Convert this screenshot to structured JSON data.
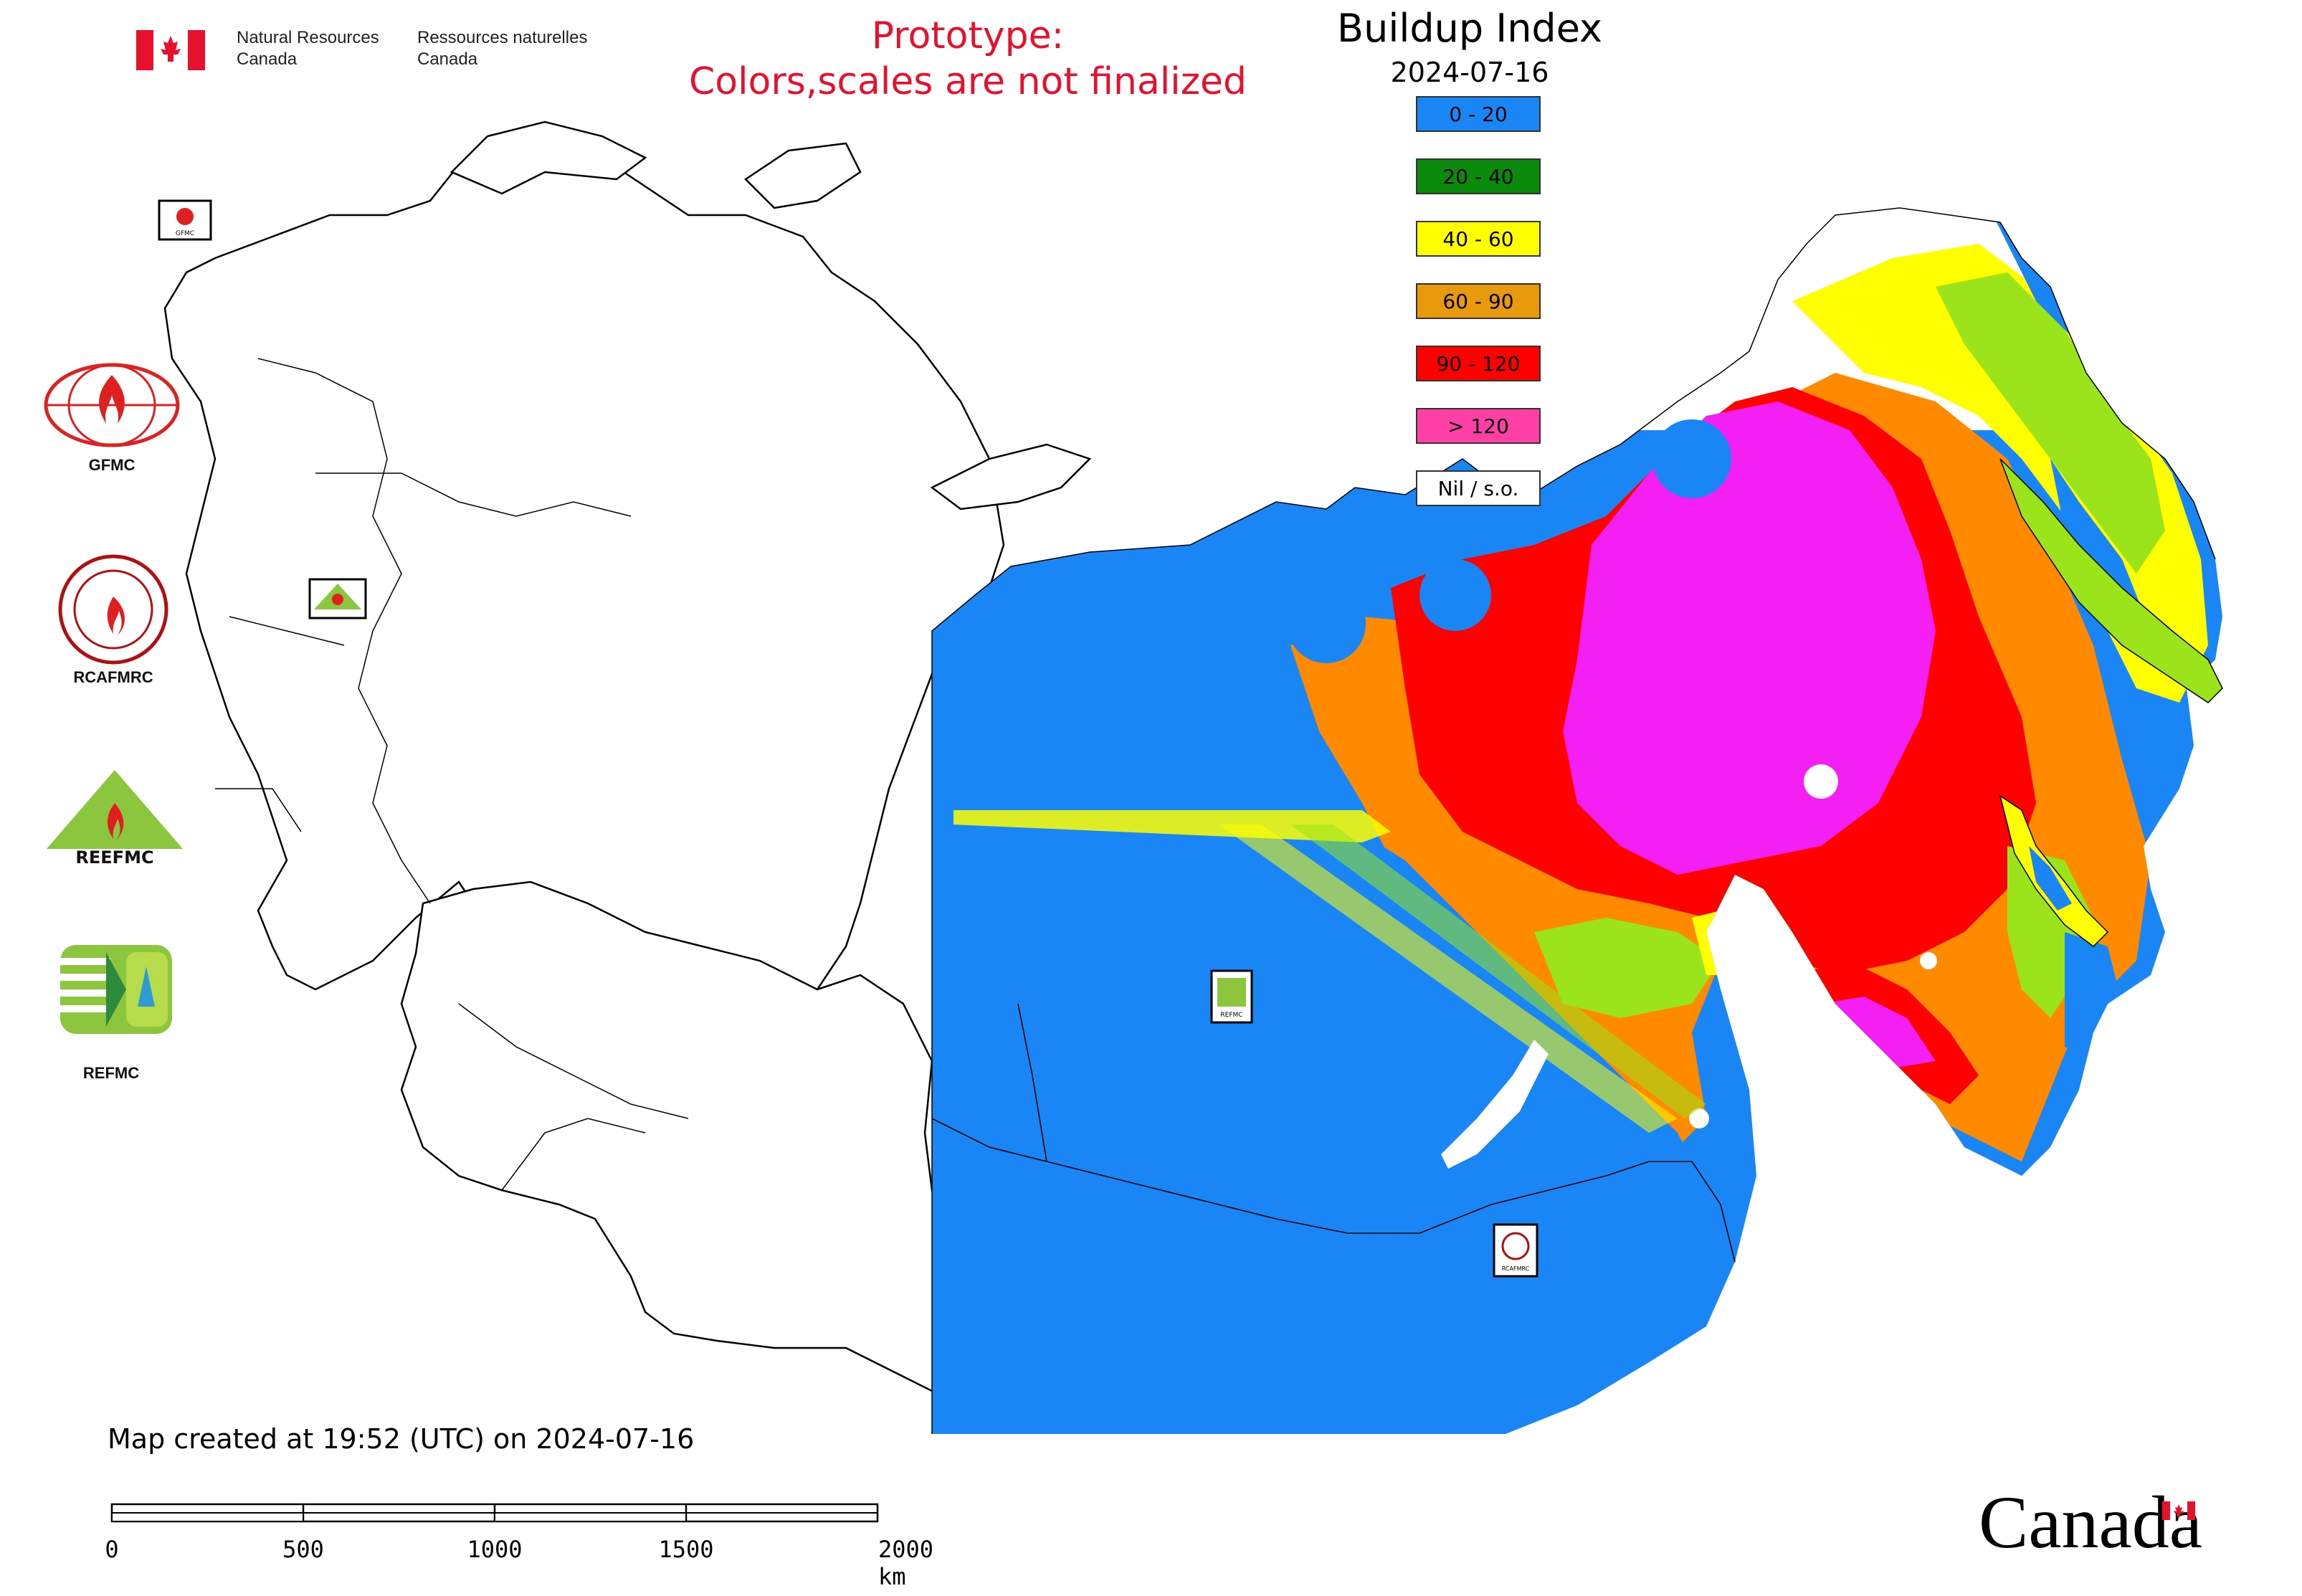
{
  "header": {
    "signature_en_line1": "Natural Resources",
    "signature_en_line2": "Canada",
    "signature_fr_line1": "Ressources naturelles",
    "signature_fr_line2": "Canada",
    "prototype_line1": "Prototype:",
    "prototype_line2": "Colors,scales are not finalized"
  },
  "map": {
    "title": "Buildup Index",
    "date": "2024-07-16",
    "station_labels": [
      "GFMC",
      "REEFMC",
      "REFMC",
      "RCAFMRC"
    ]
  },
  "legend": {
    "items": [
      {
        "label": "0 - 20",
        "color": "#1a86f5"
      },
      {
        "label": "20 - 40",
        "color": "#0a8a0a"
      },
      {
        "label": "40 - 60",
        "color": "#ffff00"
      },
      {
        "label": "60 - 90",
        "color": "#e89a0c"
      },
      {
        "label": "90 - 120",
        "color": "#ff0000"
      },
      {
        "label": "> 120",
        "color": "#ff3fa6"
      },
      {
        "label": "Nil / s.o.",
        "color": "#ffffff"
      }
    ]
  },
  "partners": [
    {
      "label": "GFMC"
    },
    {
      "label": "RCAFMRC"
    },
    {
      "label": "REEFMC"
    },
    {
      "label": "REFMC"
    }
  ],
  "footer": {
    "created_note": "Map created at 19:52 (UTC) on 2024-07-16",
    "scale_labels": [
      "0",
      "500",
      "1000",
      "1500",
      "2000 km"
    ],
    "wordmark": "Canada"
  },
  "colors": {
    "title_red": "#e8112d",
    "magenta_zone": "#f41ff2",
    "lime_zone": "#9be41c"
  }
}
